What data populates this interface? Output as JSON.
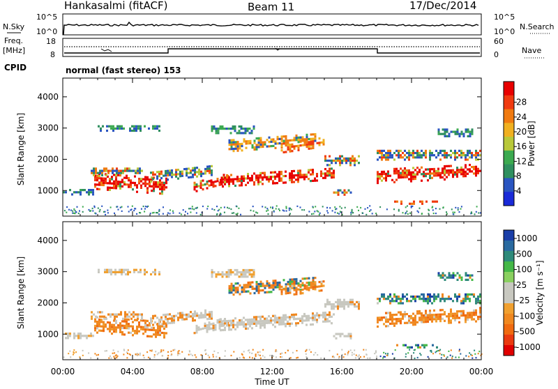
{
  "header": {
    "station": "Hankasalmi (fitACF)",
    "beam": "Beam 11",
    "date": "17/Dec/2014"
  },
  "nsky_panel": {
    "left_label": "N.Sky",
    "right_label": "N.Search",
    "tick_top": "10^5",
    "tick_bottom": "10^0"
  },
  "freq_panel": {
    "left_label_1": "Freq.",
    "left_label_2": "[MHz]",
    "left_tick_top": "18",
    "left_tick_bottom": "8",
    "right_tick_top": "60",
    "right_tick_bottom": "0",
    "right_label": "Nave"
  },
  "cpid": {
    "label": "CPID",
    "value": "normal (fast stereo) 153"
  },
  "colors": {
    "power": [
      "#1a2ad8",
      "#2a55c0",
      "#2f8f5f",
      "#3caa50",
      "#b8c83a",
      "#f0b020",
      "#f07a10",
      "#f03a10",
      "#e80000"
    ],
    "velocity_pos": [
      "#1a3ea8",
      "#2a6aa0",
      "#2e8a7a",
      "#45b848",
      "#8ad060"
    ],
    "velocity_neg": [
      "#f0a030",
      "#f08820",
      "#f06a10",
      "#ea3a10",
      "#e00000"
    ],
    "ground_scatter": "#c8c8c0"
  },
  "chart_data": [
    {
      "type": "heatmap",
      "title": "",
      "ylabel": "Slant Range [km]",
      "ylim": [
        180,
        4600
      ],
      "y_ticks": [
        "1000",
        "2000",
        "3000",
        "4000"
      ],
      "x_ticks": [
        "00:00",
        "04:00",
        "08:00",
        "12:00",
        "16:00",
        "20:00",
        "00:00"
      ],
      "colorbar": {
        "label": "Power [dB]",
        "ticks": [
          "4",
          "8",
          "12",
          "16",
          "20",
          "24",
          "28"
        ]
      }
    },
    {
      "type": "heatmap",
      "title": "",
      "ylabel": "Slant Range [km]",
      "xlabel": "Time UT",
      "ylim": [
        180,
        4600
      ],
      "y_ticks": [
        "1000",
        "2000",
        "3000",
        "4000"
      ],
      "x_ticks": [
        "00:00",
        "04:00",
        "08:00",
        "12:00",
        "16:00",
        "20:00",
        "00:00"
      ],
      "colorbar": {
        "label": "Velocity [m s⁻¹]",
        "ticks": [
          "1000",
          "500",
          "100",
          "25",
          "-25",
          "-100",
          "-500",
          "-1000"
        ]
      }
    }
  ]
}
